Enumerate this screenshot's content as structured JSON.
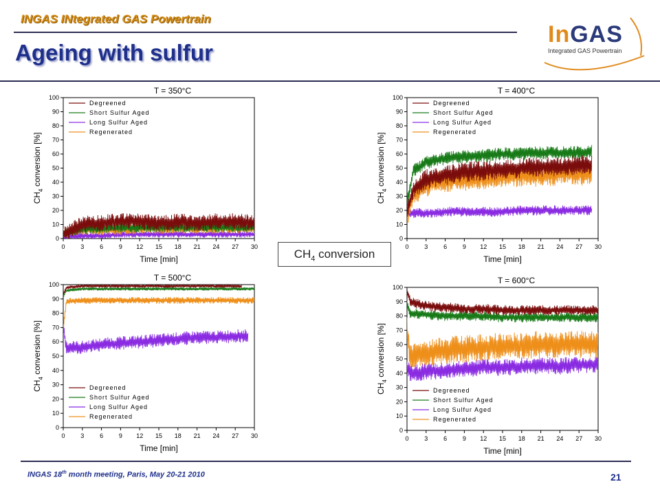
{
  "header": {
    "subtitle": "INGAS INtegrated GAS Powertrain",
    "title": "Ageing with sulfur",
    "logo_in": "In",
    "logo_gas": "GAS",
    "logo_sub": "Integrated GAS Powertrain"
  },
  "center_label": {
    "main": "CH",
    "sub": "4",
    "rest": " conversion"
  },
  "footer": {
    "pre": "INGAS 18",
    "sup": "th",
    "post": " month meeting, Paris, May 20-21 2010",
    "page": "21"
  },
  "colors": {
    "Degreened": "#7a0c0c",
    "Short Sulfur Aged": "#177a17",
    "Long Sulfur Aged": "#8a2be2",
    "Regenerated": "#ee8f1a"
  },
  "chart_data": [
    {
      "type": "line",
      "title": "T = 350°C",
      "xlabel": "Time [min]",
      "ylabel_pre": "CH",
      "ylabel_sub": "4",
      "ylabel_post": " conversion [%]",
      "xlim": [
        0,
        30
      ],
      "ylim": [
        0,
        100
      ],
      "xticks": [
        0,
        3,
        6,
        9,
        12,
        15,
        18,
        21,
        24,
        27,
        30
      ],
      "yticks": [
        0,
        10,
        20,
        30,
        40,
        50,
        60,
        70,
        80,
        90,
        100
      ],
      "legend_position": "top-left",
      "series": [
        {
          "name": "Degreened",
          "x": [
            0,
            3,
            6,
            9,
            12,
            15,
            18,
            21,
            24,
            27,
            30
          ],
          "values": [
            3,
            10,
            11,
            12,
            12,
            11,
            12,
            11,
            12,
            12,
            11
          ]
        },
        {
          "name": "Short Sulfur Aged",
          "x": [
            0,
            3,
            6,
            9,
            12,
            15,
            18,
            21,
            24,
            27,
            30
          ],
          "values": [
            3,
            7,
            7,
            8,
            8,
            8,
            8,
            8,
            8,
            8,
            8
          ]
        },
        {
          "name": "Long Sulfur Aged",
          "x": [
            0,
            3,
            6,
            9,
            12,
            15,
            18,
            21,
            24,
            27,
            30
          ],
          "values": [
            1,
            2,
            2,
            3,
            3,
            3,
            3,
            3,
            3,
            3,
            3
          ]
        },
        {
          "name": "Regenerated",
          "x": [
            0,
            3,
            6,
            9,
            12,
            15,
            18,
            21,
            24,
            27,
            30
          ],
          "values": [
            4,
            6,
            6,
            6,
            7,
            7,
            7,
            7,
            7,
            7,
            7
          ]
        }
      ]
    },
    {
      "type": "line",
      "title": "T = 400°C",
      "xlabel": "Time [min]",
      "ylabel_pre": "CH",
      "ylabel_sub": "4",
      "ylabel_post": " conversion [%]",
      "xlim": [
        0,
        30
      ],
      "ylim": [
        0,
        100
      ],
      "xticks": [
        0,
        3,
        6,
        9,
        12,
        15,
        18,
        21,
        24,
        27,
        30
      ],
      "yticks": [
        0,
        10,
        20,
        30,
        40,
        50,
        60,
        70,
        80,
        90,
        100
      ],
      "legend_position": "top-left",
      "series": [
        {
          "name": "Degreened",
          "x": [
            0,
            1,
            3,
            6,
            9,
            12,
            15,
            18,
            21,
            24,
            27,
            29
          ],
          "values": [
            20,
            35,
            42,
            45,
            47,
            48,
            49,
            50,
            51,
            51,
            52,
            52
          ]
        },
        {
          "name": "Short Sulfur Aged",
          "x": [
            0,
            1,
            3,
            6,
            9,
            12,
            15,
            18,
            21,
            24,
            27,
            29
          ],
          "values": [
            25,
            48,
            54,
            57,
            58,
            59,
            60,
            60,
            61,
            61,
            61,
            62
          ]
        },
        {
          "name": "Long Sulfur Aged",
          "x": [
            0,
            1,
            3,
            6,
            9,
            12,
            15,
            18,
            21,
            24,
            27,
            29
          ],
          "values": [
            18,
            18,
            18,
            19,
            19,
            19,
            19,
            20,
            20,
            20,
            20,
            20
          ]
        },
        {
          "name": "Regenerated",
          "x": [
            0,
            1,
            3,
            6,
            9,
            12,
            15,
            18,
            21,
            24,
            27,
            29
          ],
          "values": [
            15,
            32,
            38,
            41,
            42,
            43,
            44,
            45,
            45,
            46,
            46,
            46
          ]
        }
      ]
    },
    {
      "type": "line",
      "title": "T = 500°C",
      "xlabel": "Time [min]",
      "ylabel_pre": "CH",
      "ylabel_sub": "4",
      "ylabel_post": " conversion [%]",
      "xlim": [
        0,
        30
      ],
      "ylim": [
        0,
        100
      ],
      "xticks": [
        0,
        3,
        6,
        9,
        12,
        15,
        18,
        21,
        24,
        27,
        30
      ],
      "yticks": [
        0,
        10,
        20,
        30,
        40,
        50,
        60,
        70,
        80,
        90,
        100
      ],
      "legend_position": "bottom-left",
      "series": [
        {
          "name": "Degreened",
          "x": [
            0,
            0.5,
            3,
            6,
            9,
            12,
            15,
            18,
            21,
            24,
            27,
            28
          ],
          "values": [
            93,
            98,
            99,
            99,
            99,
            99,
            99,
            99,
            99,
            99,
            99,
            99
          ]
        },
        {
          "name": "Short Sulfur Aged",
          "x": [
            0,
            0.5,
            3,
            6,
            9,
            12,
            15,
            18,
            21,
            24,
            27,
            30
          ],
          "values": [
            92,
            96,
            97,
            97,
            97,
            97,
            97,
            97,
            97,
            97,
            97,
            97
          ]
        },
        {
          "name": "Long Sulfur Aged",
          "x": [
            0,
            0.5,
            3,
            6,
            9,
            12,
            15,
            18,
            21,
            24,
            27,
            29
          ],
          "values": [
            70,
            56,
            56,
            58,
            59,
            60,
            61,
            62,
            63,
            63,
            64,
            64
          ]
        },
        {
          "name": "Regenerated",
          "x": [
            0,
            0.5,
            3,
            6,
            9,
            12,
            15,
            18,
            21,
            24,
            27,
            30
          ],
          "values": [
            70,
            88,
            89,
            89,
            89,
            89,
            89,
            89,
            89,
            89,
            89,
            89
          ]
        }
      ]
    },
    {
      "type": "line",
      "title": "T = 600°C",
      "xlabel": "Time [min]",
      "ylabel_pre": "CH",
      "ylabel_sub": "4",
      "ylabel_post": " conversion [%]",
      "xlim": [
        0,
        30
      ],
      "ylim": [
        0,
        100
      ],
      "xticks": [
        0,
        3,
        6,
        9,
        12,
        15,
        18,
        21,
        24,
        27,
        30
      ],
      "yticks": [
        0,
        10,
        20,
        30,
        40,
        50,
        60,
        70,
        80,
        90,
        100
      ],
      "legend_position": "bottom-left",
      "series": [
        {
          "name": "Degreened",
          "x": [
            0,
            0.5,
            3,
            6,
            9,
            12,
            15,
            18,
            21,
            24,
            27,
            30
          ],
          "values": [
            98,
            90,
            87,
            86,
            85,
            85,
            84,
            84,
            84,
            84,
            84,
            84
          ]
        },
        {
          "name": "Short Sulfur Aged",
          "x": [
            0,
            0.5,
            3,
            6,
            9,
            12,
            15,
            18,
            21,
            24,
            27,
            30
          ],
          "values": [
            88,
            82,
            81,
            80,
            80,
            80,
            79,
            79,
            79,
            79,
            79,
            79
          ]
        },
        {
          "name": "Long Sulfur Aged",
          "x": [
            0,
            0.5,
            3,
            6,
            9,
            12,
            15,
            18,
            21,
            24,
            27,
            30
          ],
          "values": [
            45,
            40,
            41,
            42,
            43,
            44,
            44,
            45,
            45,
            45,
            46,
            46
          ]
        },
        {
          "name": "Regenerated",
          "x": [
            0,
            0.5,
            3,
            6,
            9,
            12,
            15,
            18,
            21,
            24,
            27,
            30
          ],
          "values": [
            70,
            52,
            54,
            56,
            57,
            58,
            59,
            59,
            60,
            60,
            60,
            60
          ]
        }
      ]
    }
  ]
}
